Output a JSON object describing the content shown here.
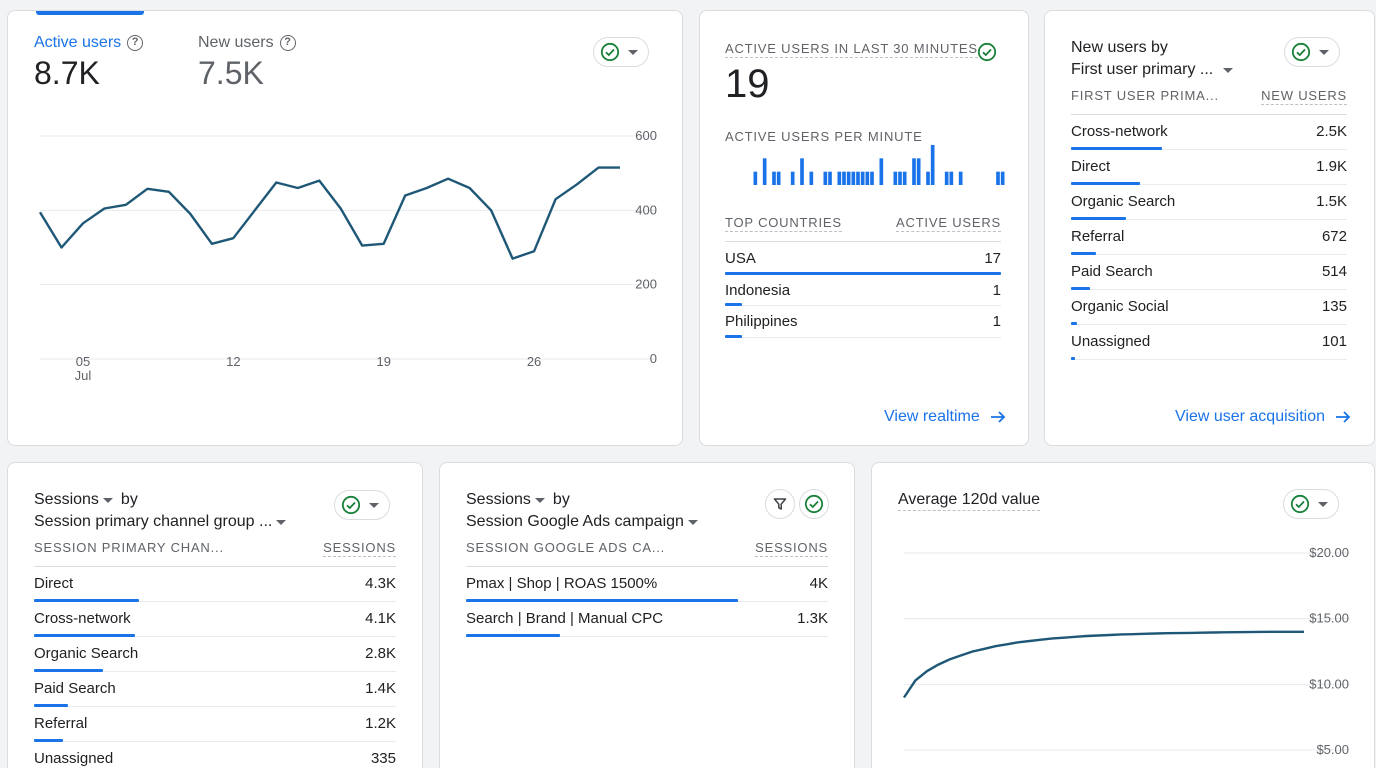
{
  "overview": {
    "metric1_label": "Active users",
    "metric1_value": "8.7K",
    "metric2_label": "New users",
    "metric2_value": "7.5K",
    "help_glyph": "?",
    "chart_data": {
      "type": "line",
      "series": [
        {
          "values": [
            395,
            300,
            365,
            405,
            415,
            458,
            450,
            390,
            310,
            325,
            400,
            475,
            460,
            480,
            405,
            305,
            310,
            440,
            460,
            485,
            460,
            400,
            270,
            290,
            430,
            470,
            515,
            515
          ]
        }
      ],
      "x_ticks": [
        "05",
        "12",
        "19",
        "26"
      ],
      "x_tick_sublabel": "Jul",
      "y_ticks": [
        "600",
        "400",
        "200",
        "0"
      ],
      "ylim": [
        0,
        600
      ],
      "grid": true
    }
  },
  "realtime": {
    "title": "ACTIVE USERS IN LAST 30 MINUTES",
    "value": "19",
    "per_minute_label": "ACTIVE USERS PER MINUTE",
    "per_minute_chart": {
      "type": "bar",
      "values": [
        0,
        0,
        0,
        0,
        0,
        0,
        1,
        0,
        2,
        0,
        1,
        1,
        0,
        0,
        1,
        0,
        2,
        0,
        1,
        0,
        0,
        1,
        1,
        0,
        1,
        1,
        1,
        1,
        1,
        1,
        1,
        1,
        0,
        2,
        0,
        0,
        1,
        1,
        1,
        0,
        2,
        2,
        0,
        1,
        3,
        0,
        0,
        1,
        1,
        0,
        1,
        0,
        0,
        0,
        0,
        0,
        0,
        0,
        1,
        1
      ]
    },
    "col1": "TOP COUNTRIES",
    "col2": "ACTIVE USERS",
    "rows": [
      {
        "name": "USA",
        "value": "17",
        "fraction": 1.0
      },
      {
        "name": "Indonesia",
        "value": "1",
        "fraction": 0.06
      },
      {
        "name": "Philippines",
        "value": "1",
        "fraction": 0.06
      }
    ],
    "link": "View realtime"
  },
  "acquisition": {
    "title_line1": "New users by",
    "title_line2": "First user primary ...",
    "col1": "FIRST USER PRIMA...",
    "col2": "NEW USERS",
    "rows": [
      {
        "name": "Cross-network",
        "value": "2.5K",
        "fraction": 0.33
      },
      {
        "name": "Direct",
        "value": "1.9K",
        "fraction": 0.25
      },
      {
        "name": "Organic Search",
        "value": "1.5K",
        "fraction": 0.2
      },
      {
        "name": "Referral",
        "value": "672",
        "fraction": 0.09
      },
      {
        "name": "Paid Search",
        "value": "514",
        "fraction": 0.07
      },
      {
        "name": "Organic Social",
        "value": "135",
        "fraction": 0.02
      },
      {
        "name": "Unassigned",
        "value": "101",
        "fraction": 0.013
      }
    ],
    "link": "View user acquisition"
  },
  "sessions_channel": {
    "title_line1_metric": "Sessions",
    "title_line1_rest": "by",
    "title_line2": "Session primary channel group ...",
    "col1": "SESSION PRIMARY CHAN...",
    "col2": "SESSIONS",
    "rows": [
      {
        "name": "Direct",
        "value": "4.3K",
        "fraction": 0.29
      },
      {
        "name": "Cross-network",
        "value": "4.1K",
        "fraction": 0.28
      },
      {
        "name": "Organic Search",
        "value": "2.8K",
        "fraction": 0.19
      },
      {
        "name": "Paid Search",
        "value": "1.4K",
        "fraction": 0.095
      },
      {
        "name": "Referral",
        "value": "1.2K",
        "fraction": 0.08
      },
      {
        "name": "Unassigned",
        "value": "335",
        "fraction": 0.023
      }
    ]
  },
  "sessions_campaign": {
    "title_line1_metric": "Sessions",
    "title_line1_rest": "by",
    "title_line2": "Session Google Ads campaign",
    "col1": "SESSION GOOGLE ADS CA...",
    "col2": "SESSIONS",
    "rows": [
      {
        "name": "Pmax | Shop | ROAS 1500%",
        "value": "4K",
        "fraction": 0.75
      },
      {
        "name": "Search | Brand | Manual CPC",
        "value": "1.3K",
        "fraction": 0.26
      }
    ]
  },
  "avg_value": {
    "title": "Average 120d value",
    "chart_data": {
      "type": "line",
      "series": [
        {
          "values": [
            9.0,
            10.3,
            11.0,
            11.5,
            11.9,
            12.2,
            12.5,
            12.7,
            12.9,
            13.05,
            13.2,
            13.3,
            13.4,
            13.5,
            13.55,
            13.62,
            13.68,
            13.72,
            13.76,
            13.8,
            13.82,
            13.85,
            13.87,
            13.89,
            13.9,
            13.92,
            13.93,
            13.95,
            13.96,
            13.97,
            13.98,
            13.99,
            14.0,
            14.0,
            14.0,
            14.0
          ]
        }
      ],
      "y_ticks": [
        "$20.00",
        "$15.00",
        "$10.00",
        "$5.00"
      ],
      "ylim": [
        5,
        20
      ],
      "grid": true
    }
  }
}
